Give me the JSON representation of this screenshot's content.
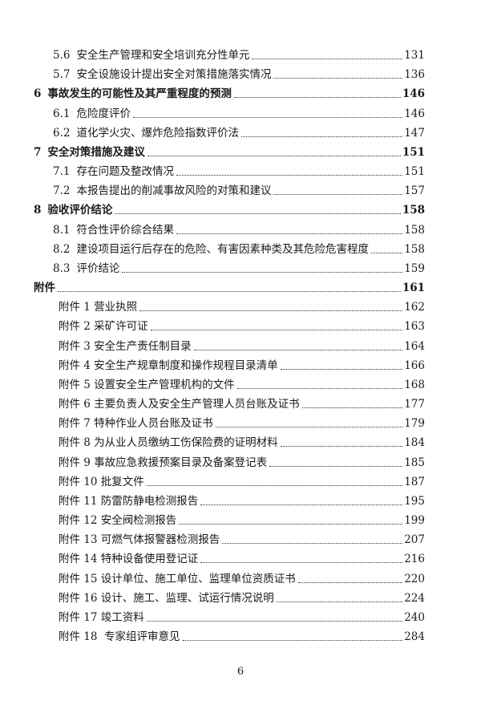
{
  "toc": [
    {
      "level": "section",
      "num": "5.6",
      "title": "安全生产管理和安全培训充分性单元",
      "page": "131"
    },
    {
      "level": "section",
      "num": "5.7",
      "title": "安全设施设计提出安全对策措施落实情况",
      "page": "136"
    },
    {
      "level": "chapter",
      "num": "6",
      "title": "事故发生的可能性及其严重程度的预测",
      "page": "146"
    },
    {
      "level": "section",
      "num": "6.1",
      "title": "危险度评价",
      "page": "146"
    },
    {
      "level": "section",
      "num": "6.2",
      "title": "道化学火灾、爆炸危险指数评价法",
      "page": "147"
    },
    {
      "level": "chapter",
      "num": "7",
      "title": "安全对策措施及建议",
      "page": "151"
    },
    {
      "level": "section",
      "num": "7.1",
      "title": "存在问题及整改情况",
      "page": "151"
    },
    {
      "level": "section",
      "num": "7.2",
      "title": "本报告提出的削减事故风险的对策和建议",
      "page": "157"
    },
    {
      "level": "chapter",
      "num": "8",
      "title": "验收评价结论",
      "page": "158"
    },
    {
      "level": "section",
      "num": "8.1",
      "title": "符合性评价综合结果",
      "page": "158"
    },
    {
      "level": "section",
      "num": "8.2",
      "title": "建设项目运行后存在的危险、有害因素种类及其危险危害程度",
      "page": "158"
    },
    {
      "level": "section",
      "num": "8.3",
      "title": "评价结论",
      "page": "159"
    },
    {
      "level": "apphead",
      "num": "",
      "title": "附件",
      "page": "161"
    },
    {
      "level": "appendix",
      "num": "",
      "title": "附件 1 营业执照",
      "page": "162"
    },
    {
      "level": "appendix",
      "num": "",
      "title": "附件 2 采矿许可证",
      "page": "163"
    },
    {
      "level": "appendix",
      "num": "",
      "title": "附件 3 安全生产责任制目录",
      "page": "164"
    },
    {
      "level": "appendix",
      "num": "",
      "title": "附件 4 安全生产规章制度和操作规程目录清单",
      "page": "166"
    },
    {
      "level": "appendix",
      "num": "",
      "title": "附件 5 设置安全生产管理机构的文件",
      "page": "168"
    },
    {
      "level": "appendix",
      "num": "",
      "title": "附件 6 主要负责人及安全生产管理人员台账及证书",
      "page": "177"
    },
    {
      "level": "appendix",
      "num": "",
      "title": "附件 7 特种作业人员台账及证书",
      "page": "179"
    },
    {
      "level": "appendix",
      "num": "",
      "title": "附件 8 为从业人员缴纳工伤保险费的证明材料",
      "page": "184"
    },
    {
      "level": "appendix",
      "num": "",
      "title": "附件 9 事故应急救援预案目录及备案登记表",
      "page": "185"
    },
    {
      "level": "appendix",
      "num": "",
      "title": "附件 10 批复文件",
      "page": "187"
    },
    {
      "level": "appendix",
      "num": "",
      "title": "附件 11 防雷防静电检测报告",
      "page": "195"
    },
    {
      "level": "appendix",
      "num": "",
      "title": "附件 12 安全阀检测报告",
      "page": "199"
    },
    {
      "level": "appendix",
      "num": "",
      "title": "附件 13 可燃气体报警器检测报告",
      "page": "207"
    },
    {
      "level": "appendix",
      "num": "",
      "title": "附件 14 特种设备使用登记证",
      "page": "216"
    },
    {
      "level": "appendix",
      "num": "",
      "title": "附件 15 设计单位、施工单位、监理单位资质证书",
      "page": "220"
    },
    {
      "level": "appendix",
      "num": "",
      "title": "附件 16 设计、施工、监理、试运行情况说明",
      "page": "224"
    },
    {
      "level": "appendix",
      "num": "",
      "title": "附件 17 竣工资料",
      "page": "240"
    },
    {
      "level": "appendix",
      "num": "",
      "title": "附件 18  专家组评审意见",
      "page": "284"
    }
  ],
  "footer": {
    "page_number": "6"
  }
}
